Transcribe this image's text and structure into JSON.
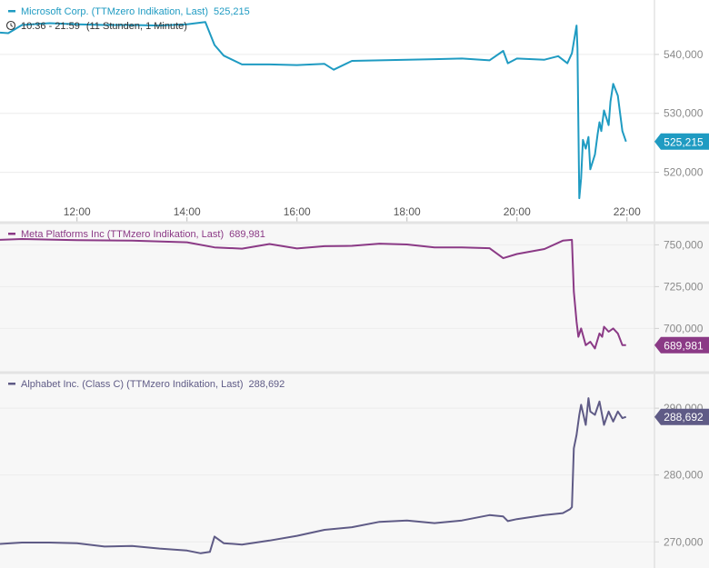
{
  "chart_data": [
    {
      "type": "line",
      "title": "Microsoft Corp. (TTMzero Indikation, Last)",
      "last_value_label": "525,215",
      "color": "#1f9bc2",
      "time_range_text": "10:36 - 21:59",
      "interval_text": "(11 Stunden, 1 Minute)",
      "x_ticks": [
        "12:00",
        "14:00",
        "16:00",
        "18:00",
        "20:00",
        "22:00"
      ],
      "y_ticks": [
        {
          "value": 520000,
          "label": "520,000"
        },
        {
          "value": 530000,
          "label": "530,000"
        },
        {
          "value": 540000,
          "label": "540,000"
        }
      ],
      "xlim": [
        "10:36",
        "22:30"
      ],
      "ylim": [
        515000,
        548000
      ],
      "series": [
        {
          "x": [
            "10:36",
            "10:45",
            "11:00",
            "11:30",
            "12:00",
            "12:30",
            "13:00",
            "13:30",
            "14:00",
            "14:20",
            "14:30",
            "14:40",
            "15:00",
            "15:30",
            "16:00",
            "16:30",
            "16:40",
            "17:00",
            "17:30",
            "18:00",
            "18:30",
            "19:00",
            "19:30",
            "19:45",
            "19:50",
            "20:00",
            "20:30",
            "20:45",
            "20:55",
            "21:00",
            "21:05",
            "21:06",
            "21:07",
            "21:08",
            "21:10",
            "21:12",
            "21:15",
            "21:18",
            "21:20",
            "21:25",
            "21:28",
            "21:30",
            "21:32",
            "21:35",
            "21:40",
            "21:42",
            "21:45",
            "21:50",
            "21:55",
            "21:59"
          ],
          "values": [
            543700,
            543600,
            545000,
            545300,
            545100,
            545000,
            545000,
            544900,
            545100,
            545500,
            541600,
            539800,
            538300,
            538300,
            538200,
            538400,
            537400,
            538900,
            539000,
            539100,
            539200,
            539300,
            539000,
            540600,
            538500,
            539300,
            539100,
            539700,
            538500,
            540200,
            544900,
            541000,
            528000,
            515600,
            519000,
            525500,
            524000,
            526000,
            520500,
            523000,
            526500,
            528500,
            527000,
            530500,
            528000,
            532000,
            535000,
            533000,
            527000,
            525215
          ]
        }
      ]
    },
    {
      "type": "line",
      "title": "Meta Platforms Inc (TTMzero Indikation, Last)",
      "last_value_label": "689,981",
      "color": "#8b3a86",
      "y_ticks": [
        {
          "value": 700000,
          "label": "700,000"
        },
        {
          "value": 725000,
          "label": "725,000"
        },
        {
          "value": 750000,
          "label": "750,000"
        }
      ],
      "xlim": [
        "10:36",
        "22:30"
      ],
      "ylim": [
        679000,
        760000
      ],
      "series": [
        {
          "x": [
            "10:36",
            "11:00",
            "12:00",
            "13:00",
            "14:00",
            "14:30",
            "15:00",
            "15:30",
            "16:00",
            "16:30",
            "17:00",
            "17:30",
            "18:00",
            "18:30",
            "19:00",
            "19:30",
            "19:45",
            "20:00",
            "20:30",
            "20:50",
            "21:00",
            "21:02",
            "21:05",
            "21:07",
            "21:10",
            "21:15",
            "21:20",
            "21:25",
            "21:30",
            "21:33",
            "21:35",
            "21:40",
            "21:45",
            "21:50",
            "21:55",
            "21:59"
          ],
          "values": [
            753000,
            753500,
            752800,
            752500,
            751500,
            748500,
            747700,
            750500,
            747800,
            749200,
            749400,
            750700,
            750200,
            748500,
            748400,
            748000,
            742000,
            744500,
            747500,
            752500,
            753000,
            722000,
            704000,
            695000,
            700000,
            690000,
            692000,
            688000,
            697000,
            695000,
            701000,
            698000,
            700000,
            697000,
            690000,
            689981
          ]
        }
      ]
    },
    {
      "type": "line",
      "title": "Alphabet Inc. (Class C) (TTMzero Indikation, Last)",
      "last_value_label": "288,692",
      "color": "#5f5b86",
      "y_ticks": [
        {
          "value": 270000,
          "label": "270,000"
        },
        {
          "value": 280000,
          "label": "280,000"
        },
        {
          "value": 290000,
          "label": "290,000"
        }
      ],
      "xlim": [
        "10:36",
        "22:30"
      ],
      "ylim": [
        266500,
        294500
      ],
      "series": [
        {
          "x": [
            "10:36",
            "11:00",
            "11:30",
            "12:00",
            "12:30",
            "13:00",
            "13:30",
            "14:00",
            "14:15",
            "14:25",
            "14:30",
            "14:40",
            "15:00",
            "15:30",
            "16:00",
            "16:30",
            "17:00",
            "17:30",
            "18:00",
            "18:30",
            "19:00",
            "19:30",
            "19:45",
            "19:50",
            "20:00",
            "20:30",
            "20:50",
            "20:58",
            "21:00",
            "21:02",
            "21:05",
            "21:08",
            "21:10",
            "21:15",
            "21:18",
            "21:20",
            "21:25",
            "21:30",
            "21:35",
            "21:40",
            "21:45",
            "21:50",
            "21:55",
            "21:59"
          ],
          "values": [
            269700,
            269900,
            269900,
            269800,
            269300,
            269400,
            269000,
            268700,
            268300,
            268500,
            270800,
            269800,
            269600,
            270200,
            270900,
            271800,
            272200,
            273000,
            273200,
            272800,
            273200,
            274000,
            273800,
            273100,
            273400,
            274000,
            274300,
            274900,
            275200,
            284000,
            286000,
            289000,
            290500,
            287500,
            291500,
            289500,
            289000,
            291000,
            287500,
            289500,
            288000,
            289500,
            288500,
            288692
          ]
        }
      ]
    }
  ]
}
